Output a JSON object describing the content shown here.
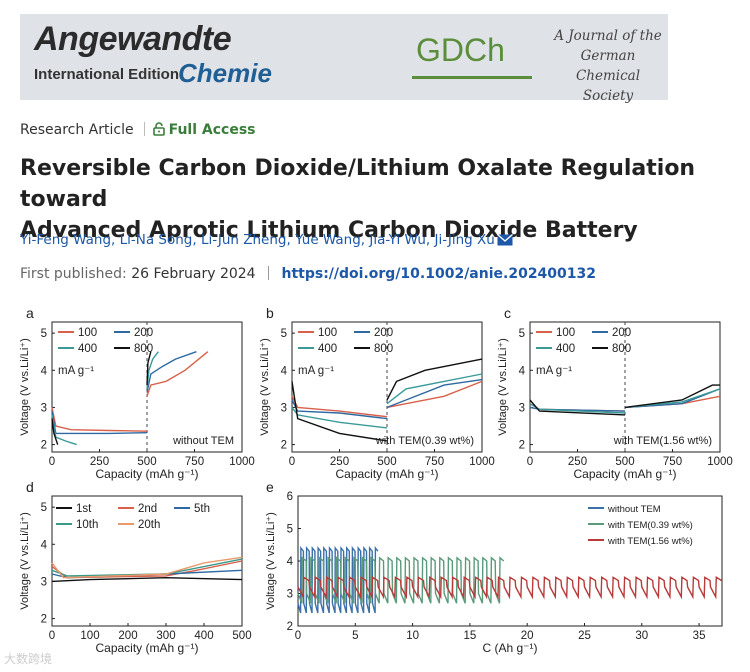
{
  "banner": {
    "angewandte": "Angewandte",
    "international": "International Edition",
    "chemie": "Chemie",
    "gdch": "GDCh",
    "journal_lines": [
      "A Journal of the",
      "German",
      "Chemical Society"
    ]
  },
  "article": {
    "type": "Research Article",
    "access": "Full Access",
    "title_line1": "Reversible Carbon Dioxide/Lithium Oxalate Regulation toward",
    "title_line2": "Advanced Aprotic Lithium Carbon Dioxide Battery",
    "authors": [
      "Yi-Feng Wang,",
      "Li-Na Song,",
      "Li-Jun Zheng,",
      "Yue Wang,",
      "Jia-Yi Wu,",
      "Ji-Jing Xu"
    ],
    "published_label": "First published:",
    "published_date": "26 February 2024",
    "doi": "https://doi.org/10.1002/anie.202400132"
  },
  "figure": {
    "panel_letters": [
      "a",
      "b",
      "c",
      "d",
      "e"
    ],
    "ylabel": "Voltage (V vs.Li/Li⁺)",
    "xlabel_capacity": "Capacity (mAh g⁻¹)",
    "xlabel_c": "C (Ah g⁻¹)",
    "current_unit": "mA g⁻¹",
    "annotations": {
      "a": "without TEM",
      "b": "with TEM(0.39 wt%)",
      "c": "with TEM(1.56 wt%)"
    },
    "legend_abc": [
      "100",
      "200",
      "400",
      "800"
    ],
    "legend_d": [
      "1st",
      "2nd",
      "5th",
      "10th",
      "20th"
    ],
    "legend_e": [
      "without TEM",
      "with TEM(0.39 wt%)",
      "with TEM(1.56 wt%)"
    ],
    "colors": {
      "c100": "#d9604a",
      "c200": "#2d6aa3",
      "c400": "#3a9a9a",
      "c800": "#111111",
      "d1": "#111111",
      "d2": "#d9604a",
      "d5": "#2d6aa3",
      "d10": "#3a9a8a",
      "d20": "#e89a6a",
      "e_without": "#3a6fa8",
      "e_039": "#5a9a7a",
      "e_156": "#b83a3a"
    }
  },
  "watermark": "大数跨境",
  "chart_data": [
    {
      "type": "line",
      "panel": "a",
      "xlabel": "Capacity (mAh g⁻¹)",
      "ylabel": "Voltage (V vs.Li/Li⁺)",
      "xlim": [
        0,
        1000
      ],
      "ylim": [
        1.8,
        5.3
      ],
      "xticks": [
        0,
        250,
        500,
        750,
        1000
      ],
      "yticks": [
        2,
        3,
        4,
        5
      ],
      "annotation": "without TEM",
      "series": [
        {
          "name": "100",
          "discharge": [
            [
              0,
              3.0
            ],
            [
              20,
              2.5
            ],
            [
              100,
              2.4
            ],
            [
              300,
              2.38
            ],
            [
              500,
              2.36
            ]
          ],
          "charge": [
            [
              500,
              3.3
            ],
            [
              520,
              3.6
            ],
            [
              600,
              3.7
            ],
            [
              700,
              4.0
            ],
            [
              820,
              4.5
            ]
          ]
        },
        {
          "name": "200",
          "discharge": [
            [
              0,
              2.9
            ],
            [
              20,
              2.3
            ],
            [
              100,
              2.3
            ],
            [
              300,
              2.3
            ],
            [
              500,
              2.32
            ]
          ],
          "charge": [
            [
              500,
              3.4
            ],
            [
              520,
              3.9
            ],
            [
              580,
              4.1
            ],
            [
              650,
              4.3
            ],
            [
              760,
              4.5
            ]
          ]
        },
        {
          "name": "400",
          "discharge": [
            [
              0,
              2.8
            ],
            [
              20,
              2.2
            ],
            [
              70,
              2.1
            ],
            [
              130,
              2.0
            ]
          ],
          "charge": [
            [
              500,
              3.5
            ],
            [
              510,
              4.0
            ],
            [
              530,
              4.3
            ],
            [
              560,
              4.5
            ]
          ]
        },
        {
          "name": "800",
          "discharge": [
            [
              0,
              2.7
            ],
            [
              10,
              2.3
            ],
            [
              30,
              2.0
            ]
          ],
          "charge": [
            [
              500,
              3.6
            ],
            [
              505,
              4.2
            ],
            [
              520,
              4.5
            ]
          ]
        }
      ]
    },
    {
      "type": "line",
      "panel": "b",
      "xlabel": "Capacity (mAh g⁻¹)",
      "ylabel": "Voltage (V vs.Li/Li⁺)",
      "xlim": [
        0,
        1000
      ],
      "ylim": [
        1.8,
        5.3
      ],
      "xticks": [
        0,
        250,
        500,
        750,
        1000
      ],
      "yticks": [
        2,
        3,
        4,
        5
      ],
      "annotation": "with TEM(0.39 wt%)",
      "series": [
        {
          "name": "100",
          "discharge": [
            [
              0,
              3.3
            ],
            [
              30,
              3.0
            ],
            [
              250,
              2.9
            ],
            [
              500,
              2.75
            ]
          ],
          "charge": [
            [
              500,
              3.0
            ],
            [
              600,
              3.1
            ],
            [
              800,
              3.3
            ],
            [
              1000,
              3.7
            ]
          ]
        },
        {
          "name": "200",
          "discharge": [
            [
              0,
              3.2
            ],
            [
              30,
              2.9
            ],
            [
              250,
              2.85
            ],
            [
              500,
              2.7
            ]
          ],
          "charge": [
            [
              500,
              3.0
            ],
            [
              600,
              3.2
            ],
            [
              800,
              3.6
            ],
            [
              1000,
              3.75
            ]
          ]
        },
        {
          "name": "400",
          "discharge": [
            [
              0,
              3.0
            ],
            [
              30,
              2.8
            ],
            [
              250,
              2.6
            ],
            [
              500,
              2.45
            ]
          ],
          "charge": [
            [
              500,
              3.1
            ],
            [
              600,
              3.5
            ],
            [
              800,
              3.7
            ],
            [
              1000,
              3.9
            ]
          ]
        },
        {
          "name": "800",
          "discharge": [
            [
              0,
              3.7
            ],
            [
              30,
              2.7
            ],
            [
              250,
              2.3
            ],
            [
              500,
              2.1
            ]
          ],
          "charge": [
            [
              500,
              3.2
            ],
            [
              550,
              3.7
            ],
            [
              700,
              4.0
            ],
            [
              1000,
              4.3
            ]
          ]
        }
      ]
    },
    {
      "type": "line",
      "panel": "c",
      "xlabel": "Capacity (mAh g⁻¹)",
      "ylabel": "Voltage (V vs.Li/Li⁺)",
      "xlim": [
        0,
        1000
      ],
      "ylim": [
        1.8,
        5.3
      ],
      "xticks": [
        0,
        250,
        500,
        750,
        1000
      ],
      "yticks": [
        2,
        3,
        4,
        5
      ],
      "annotation": "with TEM(1.56 wt%)",
      "series": [
        {
          "name": "100",
          "discharge": [
            [
              0,
              3.1
            ],
            [
              50,
              2.95
            ],
            [
              500,
              2.9
            ]
          ],
          "charge": [
            [
              500,
              3.0
            ],
            [
              800,
              3.1
            ],
            [
              1000,
              3.3
            ]
          ]
        },
        {
          "name": "200",
          "discharge": [
            [
              0,
              3.0
            ],
            [
              50,
              2.95
            ],
            [
              500,
              2.9
            ]
          ],
          "charge": [
            [
              500,
              3.0
            ],
            [
              800,
              3.1
            ],
            [
              1000,
              3.5
            ]
          ]
        },
        {
          "name": "400",
          "discharge": [
            [
              0,
              3.1
            ],
            [
              50,
              2.95
            ],
            [
              500,
              2.85
            ]
          ],
          "charge": [
            [
              500,
              3.0
            ],
            [
              800,
              3.15
            ],
            [
              1000,
              3.5
            ]
          ]
        },
        {
          "name": "800",
          "discharge": [
            [
              0,
              3.2
            ],
            [
              50,
              2.9
            ],
            [
              500,
              2.8
            ]
          ],
          "charge": [
            [
              500,
              3.0
            ],
            [
              800,
              3.2
            ],
            [
              960,
              3.6
            ],
            [
              1000,
              3.6
            ]
          ]
        }
      ]
    },
    {
      "type": "line",
      "panel": "d",
      "xlabel": "Capacity (mAh g⁻¹)",
      "ylabel": "Voltage (V vs.Li/Li⁺)",
      "xlim": [
        0,
        500
      ],
      "ylim": [
        1.8,
        5.3
      ],
      "xticks": [
        0,
        100,
        200,
        300,
        400,
        500
      ],
      "yticks": [
        2,
        3,
        4,
        5
      ],
      "series": [
        {
          "name": "1st",
          "points": [
            [
              0,
              3.0
            ],
            [
              100,
              3.05
            ],
            [
              300,
              3.1
            ],
            [
              500,
              3.05
            ]
          ]
        },
        {
          "name": "2nd",
          "points": [
            [
              0,
              3.4
            ],
            [
              40,
              3.1
            ],
            [
              300,
              3.15
            ],
            [
              380,
              3.3
            ],
            [
              500,
              3.55
            ]
          ]
        },
        {
          "name": "5th",
          "points": [
            [
              0,
              3.2
            ],
            [
              40,
              3.1
            ],
            [
              300,
              3.2
            ],
            [
              500,
              3.3
            ]
          ]
        },
        {
          "name": "10th",
          "points": [
            [
              0,
              3.3
            ],
            [
              40,
              3.15
            ],
            [
              300,
              3.2
            ],
            [
              400,
              3.4
            ],
            [
              500,
              3.6
            ]
          ]
        },
        {
          "name": "20th",
          "points": [
            [
              0,
              3.5
            ],
            [
              30,
              3.1
            ],
            [
              300,
              3.2
            ],
            [
              400,
              3.5
            ],
            [
              500,
              3.65
            ]
          ]
        }
      ]
    },
    {
      "type": "line",
      "panel": "e",
      "xlabel": "C (Ah g⁻¹)",
      "ylabel": "Voltage (V vs.Li/Li⁺)",
      "xlim": [
        0,
        37
      ],
      "ylim": [
        2,
        6
      ],
      "xticks": [
        0,
        5,
        10,
        15,
        20,
        25,
        30,
        35
      ],
      "yticks": [
        2,
        3,
        4,
        5,
        6
      ],
      "series": [
        {
          "name": "without TEM",
          "cycle_period": 0.5,
          "x_end": 7,
          "low": 2.4,
          "high": 4.4
        },
        {
          "name": "with TEM(0.39 wt%)",
          "cycle_period": 0.75,
          "x_end": 18,
          "low": 2.7,
          "high": 4.1
        },
        {
          "name": "with TEM(1.56 wt%)",
          "cycle_period": 1.0,
          "x_end": 37,
          "low": 2.9,
          "high": 3.5
        }
      ]
    }
  ]
}
